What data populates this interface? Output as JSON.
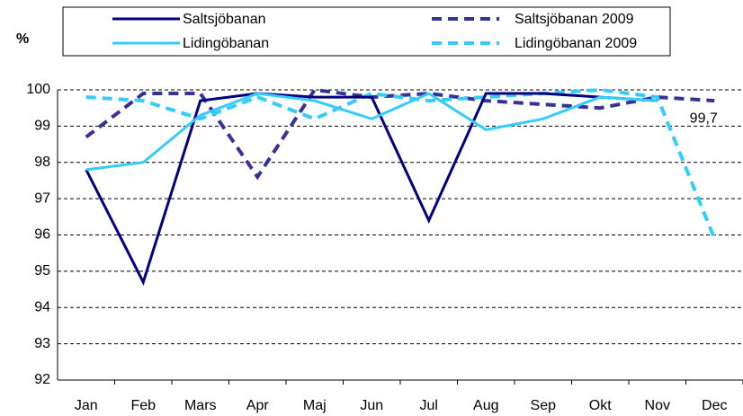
{
  "chart_data": {
    "type": "line",
    "y_label": "%",
    "categories": [
      "Jan",
      "Feb",
      "Mars",
      "Apr",
      "Maj",
      "Jun",
      "Jul",
      "Aug",
      "Sep",
      "Okt",
      "Nov",
      "Dec"
    ],
    "series": [
      {
        "name": "Saltsjöbanan",
        "color": "#000080",
        "line_style": "solid",
        "values": [
          97.8,
          94.7,
          99.7,
          99.9,
          99.8,
          99.8,
          96.4,
          99.9,
          99.9,
          99.8,
          99.7,
          null
        ]
      },
      {
        "name": "Saltsjöbanan 2009",
        "color": "#333399",
        "line_style": "dashed",
        "values": [
          98.7,
          99.9,
          99.9,
          97.6,
          100.0,
          99.8,
          99.9,
          99.7,
          99.6,
          99.5,
          99.8,
          99.7
        ]
      },
      {
        "name": "Lidingöbanan",
        "color": "#33ccff",
        "line_style": "solid",
        "values": [
          97.8,
          98.0,
          99.3,
          99.9,
          99.7,
          99.2,
          99.9,
          98.9,
          99.2,
          99.8,
          99.7,
          null
        ]
      },
      {
        "name": "Lidingöbanan 2009",
        "color": "#33ccff",
        "line_style": "dashed",
        "values": [
          99.8,
          99.7,
          99.2,
          99.8,
          99.2,
          99.9,
          99.7,
          99.8,
          99.9,
          100.0,
          99.8,
          95.9
        ]
      }
    ],
    "annotations": [
      {
        "text": "99,7",
        "series": 1,
        "index": 11
      }
    ],
    "ylim": [
      92,
      100
    ],
    "yticks": [
      92,
      93,
      94,
      95,
      96,
      97,
      98,
      99,
      100
    ],
    "grid": true
  }
}
